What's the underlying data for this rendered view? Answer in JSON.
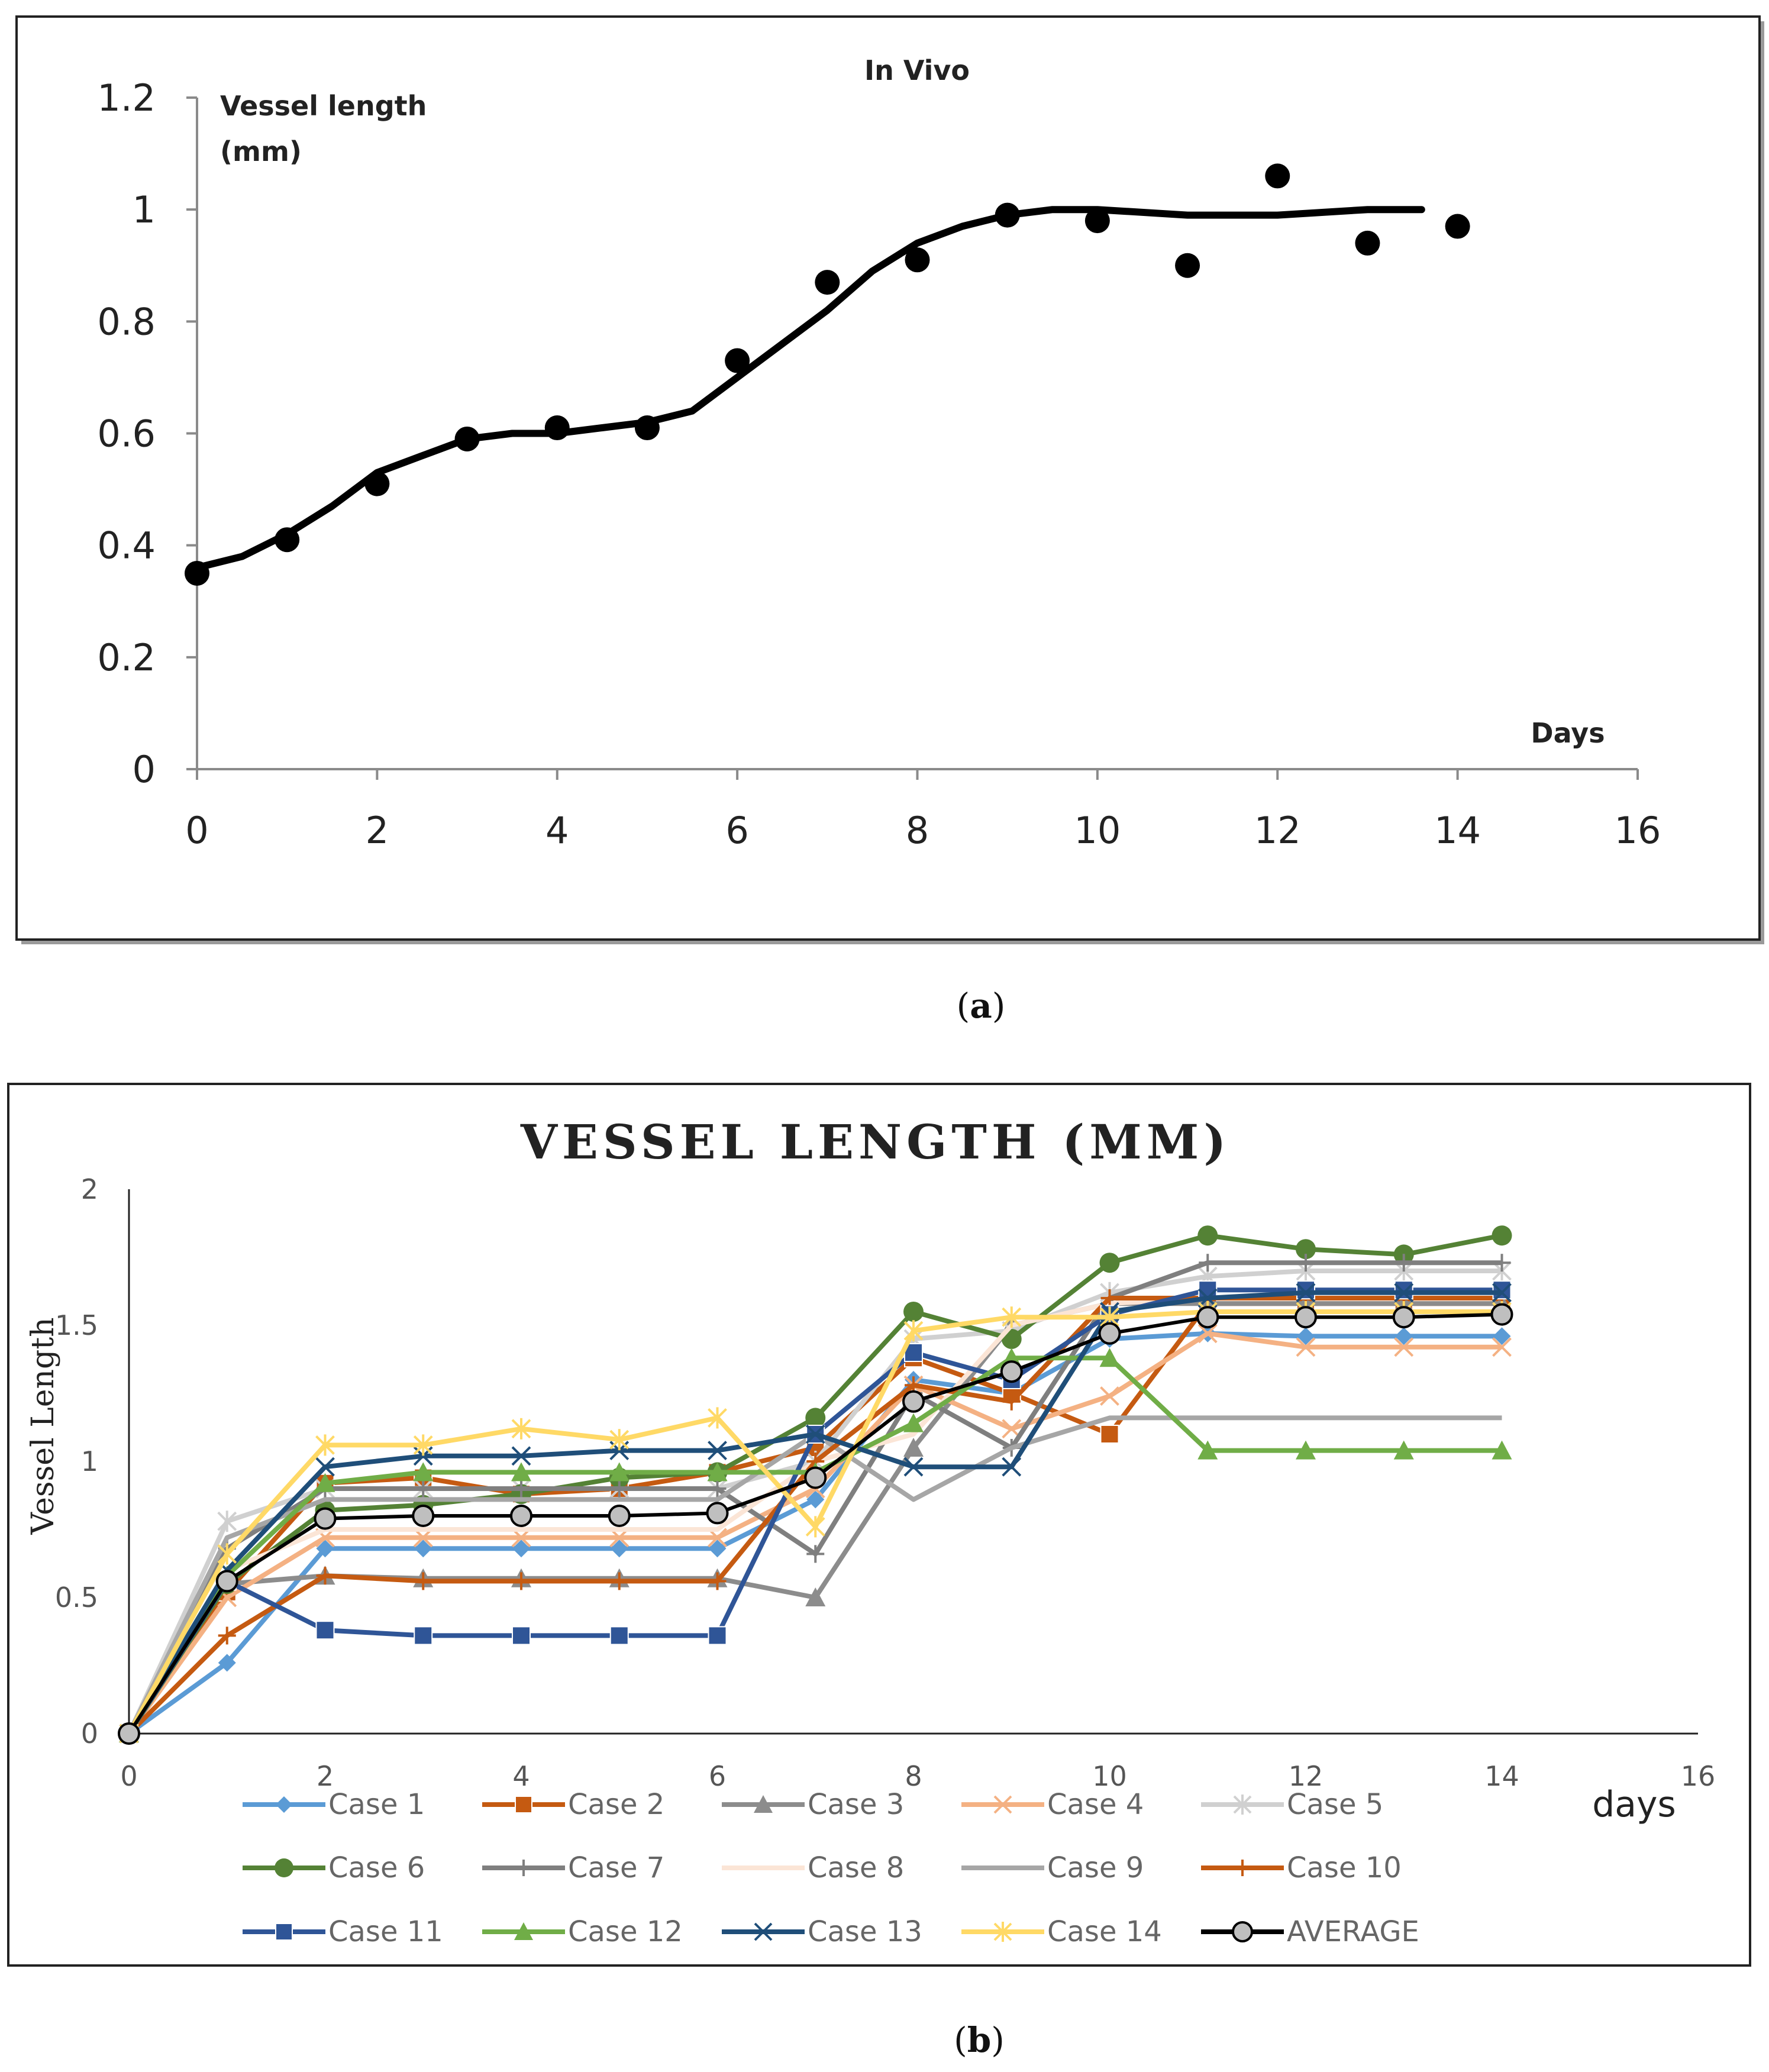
{
  "panels": [
    {
      "caption_letter": "a",
      "chart_data": {
        "type": "scatter",
        "title": "In Vivo",
        "ylabel_lines": [
          "Vessel length",
          "(mm)"
        ],
        "xlabel": "Days",
        "xlim": [
          0,
          16
        ],
        "ylim": [
          0,
          1.2
        ],
        "x_ticks": [
          0,
          2,
          4,
          6,
          8,
          10,
          12,
          14,
          16
        ],
        "x_tick_labels": [
          "0",
          "2",
          "4",
          "6",
          "8",
          "10",
          "12",
          "14",
          "16"
        ],
        "y_ticks": [
          0,
          0.2,
          0.4,
          0.6,
          0.8,
          1,
          1.2
        ],
        "y_tick_labels": [
          "0",
          "0.2",
          "0.4",
          "0.6",
          "0.8",
          "1",
          "1.2"
        ],
        "points": {
          "x": [
            0,
            1,
            2,
            3,
            4,
            5,
            6,
            7,
            8,
            9,
            10,
            11,
            12,
            13,
            14
          ],
          "y": [
            0.35,
            0.41,
            0.51,
            0.59,
            0.61,
            0.61,
            0.73,
            0.87,
            0.91,
            0.99,
            0.98,
            0.9,
            1.06,
            0.94,
            0.97
          ]
        },
        "fit_line": {
          "x": [
            0,
            0.5,
            1,
            1.5,
            2,
            2.5,
            3,
            3.5,
            4,
            4.5,
            5,
            5.5,
            6,
            6.5,
            7,
            7.5,
            8,
            8.5,
            9,
            9.5,
            10,
            11,
            12,
            13,
            13.6
          ],
          "y": [
            0.36,
            0.38,
            0.42,
            0.47,
            0.53,
            0.56,
            0.59,
            0.6,
            0.6,
            0.61,
            0.62,
            0.64,
            0.7,
            0.76,
            0.82,
            0.89,
            0.94,
            0.97,
            0.99,
            1.0,
            1.0,
            0.99,
            0.99,
            1.0,
            1.0
          ]
        }
      }
    },
    {
      "caption_letter": "b",
      "chart_data": {
        "type": "line",
        "title": "VESSEL LENGTH (MM)",
        "ylabel": "Vessel Length",
        "xlabel": "days",
        "xlim": [
          0,
          16
        ],
        "ylim": [
          0,
          2
        ],
        "x_ticks": [
          0,
          2,
          4,
          6,
          8,
          10,
          12,
          14,
          16
        ],
        "x_tick_labels": [
          "0",
          "2",
          "4",
          "6",
          "8",
          "10",
          "12",
          "14",
          "16"
        ],
        "y_ticks": [
          0,
          0.5,
          1,
          1.5,
          2
        ],
        "y_tick_labels": [
          "0",
          "0.5",
          "1",
          "1.5",
          "2"
        ],
        "x": [
          0,
          1,
          2,
          3,
          4,
          5,
          6,
          7,
          8,
          9,
          10,
          11,
          12,
          13,
          14
        ],
        "series": [
          {
            "name": "Case 1",
            "color": "#5b9bd5",
            "marker": "diamond",
            "values": [
              0,
              0.26,
              0.68,
              0.68,
              0.68,
              0.68,
              0.68,
              0.86,
              1.3,
              1.25,
              1.45,
              1.47,
              1.46,
              1.46,
              1.46
            ]
          },
          {
            "name": "Case 2",
            "color": "#c55a11",
            "marker": "square",
            "values": [
              0,
              0.52,
              0.92,
              0.94,
              0.88,
              0.9,
              0.96,
              1.05,
              1.38,
              1.25,
              1.1,
              1.58,
              1.58,
              1.58,
              1.58
            ]
          },
          {
            "name": "Case 3",
            "color": "#8c8c8c",
            "marker": "triangle",
            "values": [
              0,
              0.55,
              0.58,
              0.57,
              0.57,
              0.57,
              0.57,
              0.5,
              1.05,
              1.5,
              1.58,
              1.58,
              1.58,
              1.58,
              1.58
            ]
          },
          {
            "name": "Case 4",
            "color": "#f4b183",
            "marker": "x",
            "values": [
              0,
              0.5,
              0.72,
              0.72,
              0.72,
              0.72,
              0.72,
              0.9,
              1.28,
              1.12,
              1.24,
              1.47,
              1.42,
              1.42,
              1.42
            ]
          },
          {
            "name": "Case 5",
            "color": "#d0d0d0",
            "marker": "star",
            "values": [
              0,
              0.78,
              0.9,
              0.9,
              0.9,
              0.9,
              0.9,
              1.0,
              1.45,
              1.48,
              1.62,
              1.68,
              1.7,
              1.7,
              1.7
            ]
          },
          {
            "name": "Case 6",
            "color": "#548235",
            "marker": "circle",
            "values": [
              0,
              0.55,
              0.82,
              0.84,
              0.88,
              0.94,
              0.96,
              1.16,
              1.55,
              1.45,
              1.73,
              1.83,
              1.78,
              1.76,
              1.83
            ]
          },
          {
            "name": "Case 7",
            "color": "#7f7f7f",
            "marker": "plus",
            "values": [
              0,
              0.68,
              0.9,
              0.9,
              0.9,
              0.9,
              0.9,
              0.66,
              1.25,
              1.05,
              1.6,
              1.73,
              1.73,
              1.73,
              1.73
            ]
          },
          {
            "name": "Case 8",
            "color": "#fbe5d6",
            "marker": "none",
            "values": [
              0,
              0.6,
              0.75,
              0.75,
              0.75,
              0.75,
              0.75,
              1.0,
              1.1,
              1.5,
              1.58,
              1.6,
              1.6,
              1.6,
              1.6
            ]
          },
          {
            "name": "Case 9",
            "color": "#a6a6a6",
            "marker": "none",
            "values": [
              0,
              0.72,
              0.86,
              0.86,
              0.86,
              0.86,
              0.86,
              1.1,
              0.86,
              1.05,
              1.16,
              1.16,
              1.16,
              1.16,
              1.16
            ]
          },
          {
            "name": "Case 10",
            "color": "#c55a11",
            "marker": "plus",
            "values": [
              0,
              0.36,
              0.58,
              0.56,
              0.56,
              0.56,
              0.56,
              1.0,
              1.28,
              1.22,
              1.6,
              1.6,
              1.6,
              1.6,
              1.6
            ]
          },
          {
            "name": "Case 11",
            "color": "#2f5597",
            "marker": "square",
            "values": [
              0,
              0.56,
              0.38,
              0.36,
              0.36,
              0.36,
              0.36,
              1.1,
              1.4,
              1.3,
              1.54,
              1.63,
              1.63,
              1.63,
              1.63
            ]
          },
          {
            "name": "Case 12",
            "color": "#70ad47",
            "marker": "triangle",
            "values": [
              0,
              0.58,
              0.92,
              0.96,
              0.96,
              0.96,
              0.96,
              0.96,
              1.14,
              1.38,
              1.38,
              1.04,
              1.04,
              1.04,
              1.04
            ]
          },
          {
            "name": "Case 13",
            "color": "#1f4e79",
            "marker": "x",
            "values": [
              0,
              0.6,
              0.98,
              1.02,
              1.02,
              1.04,
              1.04,
              1.1,
              0.98,
              0.98,
              1.55,
              1.6,
              1.62,
              1.62,
              1.62
            ]
          },
          {
            "name": "Case 14",
            "color": "#ffd966",
            "marker": "star",
            "values": [
              0,
              0.66,
              1.06,
              1.06,
              1.12,
              1.08,
              1.16,
              0.76,
              1.48,
              1.53,
              1.53,
              1.55,
              1.55,
              1.55,
              1.55
            ]
          },
          {
            "name": "AVERAGE",
            "color": "#000000",
            "marker": "circle-gray",
            "values": [
              0,
              0.56,
              0.79,
              0.8,
              0.8,
              0.8,
              0.81,
              0.94,
              1.22,
              1.33,
              1.47,
              1.53,
              1.53,
              1.53,
              1.54
            ]
          }
        ]
      }
    }
  ]
}
